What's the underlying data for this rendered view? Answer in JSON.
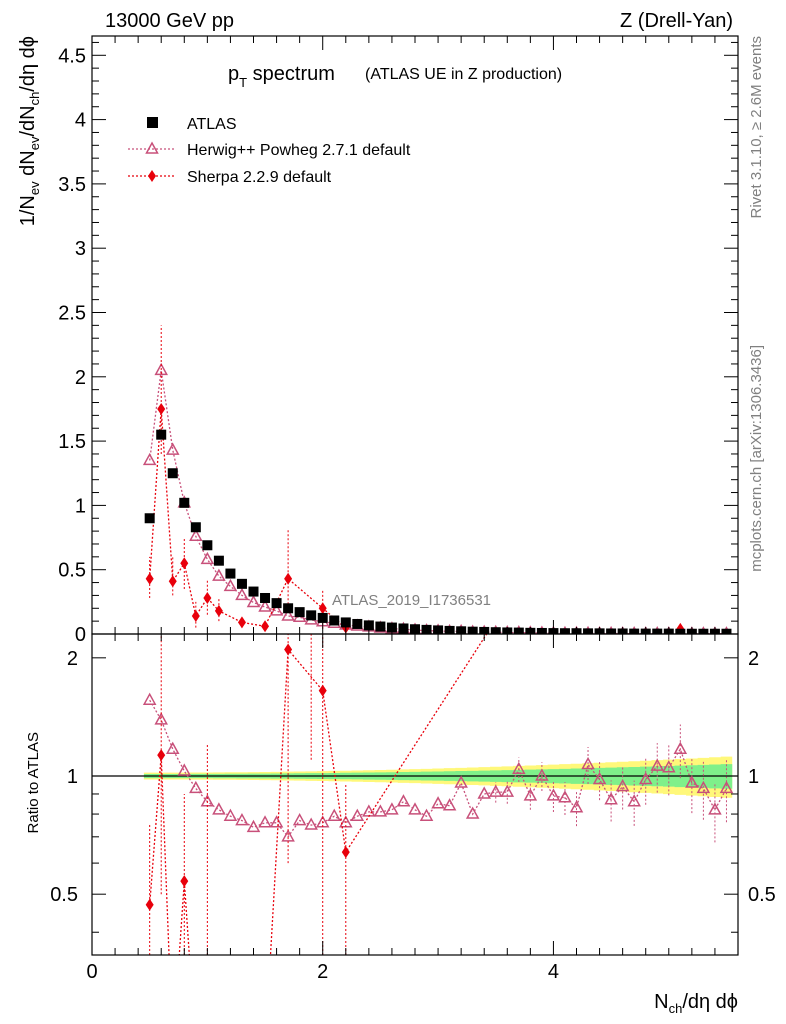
{
  "header": {
    "left": "13000 GeV pp",
    "right": "Z (Drell-Yan)"
  },
  "side_text": {
    "rivet": "Rivet 3.1.10, ≥ 2.6M events",
    "mcplots": "mcplots.cern.ch [arXiv:1306.3436]"
  },
  "chart_data": {
    "type": "scatter",
    "title_main": "p",
    "title_sub": "T",
    "title_rest": " spectrum",
    "title_note": "(ATLAS UE in Z production)",
    "analysis_tag": "ATLAS_2019_I1736531",
    "xlabel": "N",
    "xlabel_sub": "ch",
    "xlabel_rest": "/dη dϕ",
    "ylabel_upper": "1/N",
    "ylabel_upper_sub1": "ev",
    "ylabel_upper_mid": " dN",
    "ylabel_upper_sub2": "ev",
    "ylabel_upper_mid2": "/dN",
    "ylabel_upper_sub3": "ch",
    "ylabel_upper_rest": "/dη dϕ",
    "ylabel_lower": "Ratio to ATLAS",
    "xlim": [
      0,
      5.6
    ],
    "ylim_upper": [
      0,
      4.65
    ],
    "ylim_lower": [
      0.35,
      2.3
    ],
    "xticks": [
      "0",
      "2",
      "4"
    ],
    "yticks_upper": [
      "0",
      "0.5",
      "1",
      "1.5",
      "2",
      "2.5",
      "3",
      "3.5",
      "4",
      "4.5"
    ],
    "yticks_lower": [
      "0.5",
      "1",
      "2"
    ],
    "legend": [
      "ATLAS",
      "Herwig++ Powheg 2.7.1 default",
      "Sherpa 2.2.9 default"
    ],
    "colors": {
      "atlas": "#000000",
      "herwig": "#c8507a",
      "sherpa": "#e8000b",
      "band_inner": "#7ff08a",
      "band_outer": "#fff87a"
    },
    "atlas": {
      "x": [
        0.5,
        0.6,
        0.7,
        0.8,
        0.9,
        1.0,
        1.1,
        1.2,
        1.3,
        1.4,
        1.5,
        1.6,
        1.7,
        1.8,
        1.9,
        2.0,
        2.1,
        2.2,
        2.3,
        2.4,
        2.5,
        2.6,
        2.7,
        2.8,
        2.9,
        3.0,
        3.1,
        3.2,
        3.3,
        3.4,
        3.5,
        3.6,
        3.7,
        3.8,
        3.9,
        4.0,
        4.1,
        4.2,
        4.3,
        4.4,
        4.5,
        4.6,
        4.7,
        4.8,
        4.9,
        5.0,
        5.1,
        5.2,
        5.3,
        5.4,
        5.5
      ],
      "y": [
        0.9,
        1.55,
        1.25,
        1.02,
        0.83,
        0.69,
        0.57,
        0.47,
        0.39,
        0.33,
        0.28,
        0.24,
        0.2,
        0.17,
        0.145,
        0.125,
        0.105,
        0.09,
        0.078,
        0.067,
        0.058,
        0.05,
        0.043,
        0.037,
        0.032,
        0.028,
        0.024,
        0.021,
        0.018,
        0.016,
        0.014,
        0.012,
        0.011,
        0.009,
        0.008,
        0.007,
        0.006,
        0.006,
        0.005,
        0.005,
        0.004,
        0.004,
        0.003,
        0.003,
        0.003,
        0.003,
        0.002,
        0.002,
        0.002,
        0.002,
        0.002
      ]
    },
    "herwig": {
      "x": [
        0.5,
        0.6,
        0.7,
        0.8,
        0.9,
        1.0,
        1.1,
        1.2,
        1.3,
        1.4,
        1.5,
        1.6,
        1.7,
        1.8,
        1.9,
        2.0,
        2.1,
        2.2,
        2.3,
        2.4,
        2.5,
        2.6,
        2.7,
        2.8,
        2.9,
        3.0,
        3.1,
        3.2,
        3.3,
        3.4,
        3.5,
        3.6,
        3.7,
        3.8,
        3.9,
        4.0,
        4.1,
        4.2,
        4.3,
        4.4,
        4.5,
        4.6,
        4.7,
        4.8,
        4.9,
        5.0,
        5.1,
        5.2,
        5.3,
        5.4,
        5.5
      ],
      "y": [
        1.35,
        2.05,
        1.43,
        1.02,
        0.76,
        0.58,
        0.45,
        0.37,
        0.3,
        0.245,
        0.21,
        0.18,
        0.14,
        0.13,
        0.11,
        0.095,
        0.084,
        0.07,
        0.062,
        0.055,
        0.047,
        0.041,
        0.037,
        0.031,
        0.026,
        0.024,
        0.02,
        0.02,
        0.015,
        0.014,
        0.013,
        0.011,
        0.011,
        0.009,
        0.007,
        0.006,
        0.005,
        0.006,
        0.005,
        0.004,
        0.004,
        0.003,
        0.003,
        0.003,
        0.003,
        0.003,
        0.002,
        0.002,
        0.002,
        0.002,
        0.002
      ],
      "ratio": [
        1.56,
        1.39,
        1.17,
        1.03,
        0.93,
        0.86,
        0.82,
        0.79,
        0.77,
        0.74,
        0.76,
        0.76,
        0.7,
        0.77,
        0.75,
        0.76,
        0.79,
        0.76,
        0.79,
        0.81,
        0.81,
        0.82,
        0.86,
        0.82,
        0.79,
        0.85,
        0.84,
        0.96,
        0.8,
        0.9,
        0.91,
        0.91,
        1.04,
        0.89,
        1.0,
        0.89,
        0.88,
        0.83,
        1.07,
        0.98,
        0.87,
        0.94,
        0.86,
        0.98,
        1.06,
        1.05,
        1.17,
        0.96,
        0.93,
        0.82,
        0.93
      ]
    },
    "sherpa": {
      "x": [
        0.5,
        0.6,
        0.7,
        0.8,
        0.9,
        1.0,
        1.1,
        1.2,
        1.3,
        1.4,
        1.5,
        1.6,
        1.7,
        1.8,
        1.9,
        2.0,
        2.1,
        2.2,
        5.1
      ],
      "y": [
        0.43,
        1.75,
        0.41,
        0.55,
        0.14,
        0.28,
        0.18,
        null,
        0.09,
        null,
        0.06,
        null,
        0.43,
        null,
        null,
        0.2,
        null,
        0.05,
        0.04
      ],
      "ratio": [
        0.47,
        1.13,
        null,
        0.54,
        null,
        0.33,
        null,
        null,
        null,
        null,
        null,
        null,
        2.1,
        null,
        null,
        1.65,
        null,
        0.64,
        null
      ]
    }
  }
}
